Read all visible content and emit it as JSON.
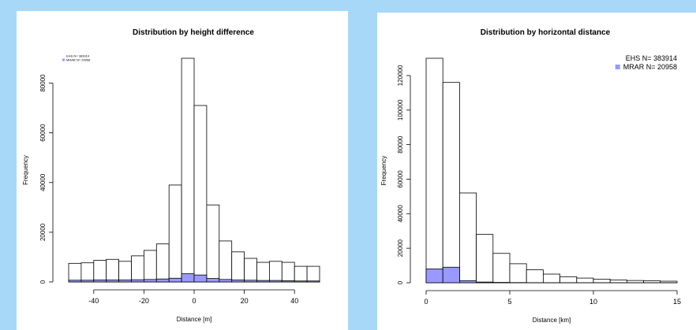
{
  "chart_data": [
    {
      "type": "bar",
      "title": "Distribution by height difference",
      "xlabel": "Distance [m]",
      "ylabel": "Frequency",
      "xlim": [
        -50,
        50
      ],
      "ylim": [
        0,
        90000
      ],
      "xticks": [
        -40,
        -20,
        0,
        20,
        40
      ],
      "yticks": [
        0,
        20000,
        40000,
        60000,
        80000
      ],
      "bin_width": 5,
      "bin_starts": [
        -50,
        -45,
        -40,
        -35,
        -30,
        -25,
        -20,
        -15,
        -10,
        -5,
        0,
        5,
        10,
        15,
        20,
        25,
        30,
        35,
        40,
        45
      ],
      "grid": false,
      "legend_position": "top-left",
      "series": [
        {
          "name": "EHS N= 383914",
          "color": "#ffffff",
          "values": [
            7500,
            7700,
            8700,
            9100,
            8300,
            10500,
            12700,
            15300,
            39000,
            90000,
            71000,
            31000,
            16500,
            12100,
            9500,
            7900,
            8300,
            7900,
            6300,
            6300
          ]
        },
        {
          "name": "MRAR N= 20958",
          "color": "#9999ff",
          "values": [
            700,
            700,
            800,
            800,
            800,
            900,
            1000,
            1200,
            1500,
            3300,
            2800,
            1400,
            1000,
            800,
            700,
            600,
            600,
            500,
            400,
            400
          ]
        }
      ]
    },
    {
      "type": "bar",
      "title": "Distribution by horizontal distance",
      "xlabel": "Distance [km]",
      "ylabel": "Frequency",
      "xlim": [
        0,
        15
      ],
      "ylim": [
        0,
        130000
      ],
      "xticks": [
        0,
        5,
        10,
        15
      ],
      "yticks": [
        0,
        20000,
        40000,
        60000,
        80000,
        100000,
        120000
      ],
      "bin_width": 1,
      "bin_starts": [
        0,
        1,
        2,
        3,
        4,
        5,
        6,
        7,
        8,
        9,
        10,
        11,
        12,
        13,
        14
      ],
      "grid": false,
      "legend_position": "top-right",
      "series": [
        {
          "name": "EHS N= 383914",
          "color": "#ffffff",
          "values": [
            130000,
            116000,
            52000,
            28000,
            17000,
            11000,
            7500,
            5000,
            3500,
            2700,
            2100,
            1600,
            1300,
            1100,
            900
          ]
        },
        {
          "name": "MRAR N= 20958",
          "color": "#9999ff",
          "values": [
            8000,
            9000,
            1200,
            400,
            200,
            100,
            50,
            30,
            20,
            10,
            10,
            5,
            5,
            5,
            5
          ]
        }
      ]
    }
  ]
}
